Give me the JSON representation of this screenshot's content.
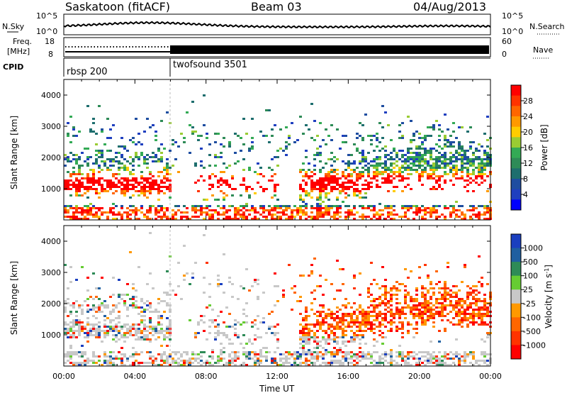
{
  "header": {
    "station": "Saskatoon (fitACF)",
    "beam": "Beam 03",
    "date": "04/Aug/2013"
  },
  "noise_panel": {
    "left_label": "N.Sky",
    "right_label": "N.Search",
    "left_ticks": [
      "10^5",
      "10^0"
    ],
    "right_ticks": [
      "10^5",
      "10^0"
    ]
  },
  "freq_panel": {
    "left_label_1": "Freq.",
    "left_label_2": "[MHz]",
    "left_ticks": [
      "18",
      "8"
    ],
    "right_label": "Nave",
    "right_ticks": [
      "60",
      "0"
    ]
  },
  "cpid_panel": {
    "label": "CPID",
    "programs": [
      {
        "name": "rbsp 200",
        "start": "00:00"
      },
      {
        "name": "twofsound 3501",
        "start": "06:00"
      }
    ]
  },
  "time_axis": {
    "label": "Time UT",
    "ticks": [
      "00:00",
      "04:00",
      "08:00",
      "12:00",
      "16:00",
      "20:00",
      "00:00"
    ]
  },
  "power_panel": {
    "ylabel": "Slant Range [km]",
    "yticks": [
      "4000",
      "3000",
      "2000",
      "1000"
    ],
    "colorbar_label": "Power [dB]",
    "colorbar_ticks": [
      "28",
      "24",
      "20",
      "16",
      "12",
      "8",
      "4"
    ],
    "colors": [
      "#ff0000",
      "#ff3300",
      "#ff6600",
      "#ff9900",
      "#ffcc00",
      "#99cc33",
      "#33aa55",
      "#2e8b57",
      "#1e6e6e",
      "#1e4da0",
      "#1f3fbf",
      "#0000ff"
    ]
  },
  "velocity_panel": {
    "ylabel": "Slant Range [km]",
    "yticks": [
      "4000",
      "3000",
      "2000",
      "1000"
    ],
    "colorbar_label": "Velocity [m s",
    "colorbar_label_sup": "-1",
    "colorbar_label_end": "]",
    "colorbar_ticks": [
      "1000",
      "500",
      "100",
      "25",
      "-25",
      "-100",
      "-500",
      "-1000"
    ],
    "colors": [
      "#1a3fbf",
      "#1f5fa0",
      "#2e8b57",
      "#66cc33",
      "#c8c8c8",
      "#ff9900",
      "#ff6600",
      "#ff3300",
      "#ff0000"
    ]
  }
}
